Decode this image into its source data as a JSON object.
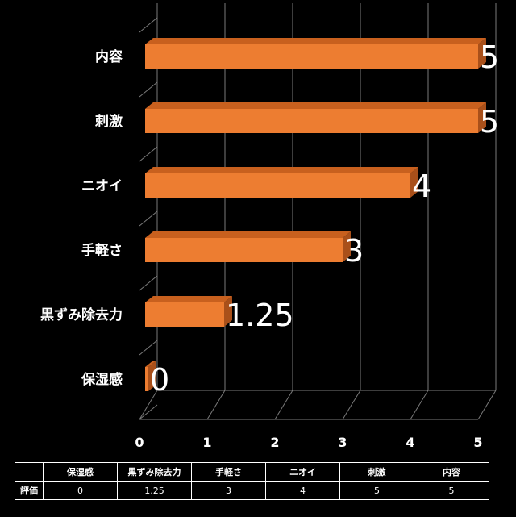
{
  "chart_data": {
    "type": "bar",
    "orientation": "horizontal",
    "style": "3d",
    "categories": [
      "保湿感",
      "黒ずみ除去力",
      "手軽さ",
      "ニオイ",
      "刺激",
      "内容"
    ],
    "values": [
      0,
      1.25,
      3,
      4,
      5,
      5
    ],
    "value_labels": [
      "0",
      "1.25",
      "3",
      "4",
      "5",
      "5"
    ],
    "xlim": [
      0,
      5
    ],
    "x_ticks": [
      "0",
      "1",
      "2",
      "3",
      "4",
      "5"
    ],
    "grid": true,
    "bar_color": "#ED7D31",
    "background": "#000000"
  },
  "table": {
    "row_header": "評価",
    "columns": [
      "保湿感",
      "黒ずみ除去力",
      "手軽さ",
      "ニオイ",
      "刺激",
      "内容"
    ],
    "values": [
      "0",
      "1.25",
      "3",
      "4",
      "5",
      "5"
    ]
  }
}
